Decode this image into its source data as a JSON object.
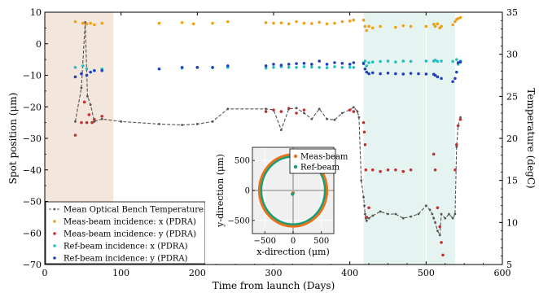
{
  "chart_data": {
    "type": "scatter",
    "xlabel": "Time from launch (Days)",
    "ylabel": "Spot position (μm)",
    "y2label": "Temperature (degC)",
    "xlim": [
      0,
      600
    ],
    "ylim": [
      -70,
      10
    ],
    "y2lim": [
      5,
      35
    ],
    "xticks": [
      "0",
      "100",
      "200",
      "300",
      "400",
      "500",
      "600"
    ],
    "yticks": [
      "10",
      "0",
      "−10",
      "−20",
      "−30",
      "−40",
      "−50",
      "−60",
      "−70"
    ],
    "y2ticks": [
      "35",
      "30",
      "25",
      "20",
      "15",
      "10",
      "5"
    ],
    "shaded_regions": [
      {
        "x": [
          0,
          90
        ],
        "color": "#f3e6dc"
      },
      {
        "x": [
          418,
          538
        ],
        "color": "#e6f4f1"
      }
    ],
    "grid_lines_x": [
      100,
      400,
      500
    ],
    "colors": {
      "temperature": "#555555",
      "meas_x": "#f0a010",
      "meas_y": "#c03030",
      "ref_x": "#20c0c0",
      "ref_y": "#2040c0",
      "inset_meas": "#e8731a",
      "inset_ref": "#1a9e77"
    },
    "legend": {
      "position": "lower-left",
      "entries": [
        {
          "label": "Mean Optical Bench Temperature",
          "color": "#555555",
          "marker": "line"
        },
        {
          "label": "Meas-beam incidence: x (PDRA)",
          "color": "#f0a010",
          "marker": "dot"
        },
        {
          "label": "Meas-beam incidence: y (PDRA)",
          "color": "#c03030",
          "marker": "dot"
        },
        {
          "label": "Ref-beam incidence: x (PDRA)",
          "color": "#20c0c0",
          "marker": "dot"
        },
        {
          "label": "Ref-beam incidence: y (PDRA)",
          "color": "#2040c0",
          "marker": "dot"
        }
      ]
    },
    "series": [
      {
        "name": "Mean Optical Bench Temperature",
        "axis": "right",
        "style": "line",
        "x": [
          40,
          48,
          53,
          56,
          60,
          65,
          75,
          100,
          150,
          180,
          200,
          220,
          240,
          290,
          300,
          310,
          320,
          330,
          340,
          350,
          360,
          370,
          380,
          390,
          400,
          405,
          410,
          412,
          415,
          418,
          419,
          420,
          421,
          422,
          425,
          430,
          440,
          450,
          460,
          470,
          480,
          490,
          500,
          505,
          508,
          510,
          512,
          515,
          518,
          520,
          525,
          530,
          535,
          538,
          540,
          542,
          545
        ],
        "y": [
          22,
          26,
          33.8,
          25,
          24,
          22,
          22.3,
          22,
          21.7,
          21.6,
          21.7,
          22,
          23.5,
          23.5,
          23.4,
          21,
          23.5,
          23.6,
          23,
          22.3,
          23.5,
          22.3,
          22.2,
          23,
          23.4,
          23.7,
          23.2,
          22.5,
          15,
          13,
          12,
          11,
          10.5,
          10.2,
          10.5,
          10.8,
          11.3,
          11,
          11,
          10.5,
          10.7,
          11,
          12,
          11.5,
          11,
          10.5,
          10,
          9,
          8.5,
          11,
          10.5,
          11,
          10.5,
          11,
          19,
          21.5,
          22.5
        ]
      },
      {
        "name": "Meas-beam incidence: x (PDRA)",
        "axis": "left",
        "style": "dots",
        "x": [
          40,
          50,
          55,
          60,
          65,
          75,
          150,
          180,
          195,
          220,
          240,
          290,
          300,
          310,
          320,
          330,
          340,
          350,
          360,
          370,
          380,
          390,
          400,
          405,
          418,
          420,
          422,
          425,
          430,
          440,
          460,
          470,
          480,
          500,
          510,
          512,
          515,
          518,
          520,
          535,
          538,
          540,
          542,
          545
        ],
        "y": [
          7,
          6.5,
          6.3,
          6.5,
          6,
          6.5,
          6.5,
          6.7,
          6.3,
          6.5,
          7,
          6.7,
          6.5,
          6.6,
          6.3,
          7,
          6.5,
          6.4,
          6.8,
          6.3,
          6.5,
          7,
          7.2,
          7.5,
          7.5,
          5.5,
          4.2,
          5.5,
          5,
          5.5,
          5.2,
          5.7,
          5.5,
          5.5,
          6.2,
          5.5,
          6.3,
          5,
          5.5,
          6,
          7,
          7.7,
          8,
          8.3
        ]
      },
      {
        "name": "Meas-beam incidence: y (PDRA)",
        "axis": "left",
        "style": "dots",
        "x": [
          40,
          48,
          52,
          55,
          58,
          62,
          65,
          75,
          290,
          300,
          310,
          320,
          330,
          340,
          400,
          405,
          418,
          419,
          420,
          421,
          422,
          425,
          430,
          440,
          450,
          460,
          470,
          480,
          510,
          512,
          515,
          518,
          520,
          522,
          538,
          540,
          542,
          545
        ],
        "y": [
          -29,
          -25,
          -18.5,
          -25,
          -22.5,
          -25,
          -24,
          -23,
          -21.5,
          -21,
          -21.5,
          -20.5,
          -22,
          -21,
          -21,
          -21.5,
          -25,
          -28,
          -32,
          -40,
          -55,
          -52,
          -40,
          -40.5,
          -40,
          -40,
          -40.5,
          -40,
          -35,
          -40,
          -52,
          -58,
          -63,
          -67,
          -40,
          -32,
          -26,
          -24
        ]
      },
      {
        "name": "Ref-beam incidence: x (PDRA)",
        "axis": "left",
        "style": "dots",
        "x": [
          40,
          50,
          55,
          65,
          75,
          150,
          180,
          200,
          220,
          240,
          290,
          300,
          310,
          320,
          330,
          340,
          350,
          360,
          370,
          380,
          390,
          400,
          405,
          418,
          420,
          422,
          425,
          430,
          440,
          450,
          460,
          470,
          480,
          500,
          510,
          512,
          515,
          520,
          535,
          540,
          542,
          545
        ],
        "y": [
          -7.5,
          -7,
          -8,
          -8.5,
          -8,
          -8,
          -7.7,
          -7.5,
          -7.6,
          -7.5,
          -7.7,
          -7.5,
          -7.3,
          -7.5,
          -7.5,
          -7.3,
          -7.4,
          -7.5,
          -7.6,
          -7.3,
          -7.5,
          -7.5,
          -7.5,
          -6,
          -5.5,
          -7,
          -6,
          -5.8,
          -5.6,
          -5.5,
          -5.8,
          -5.5,
          -5.6,
          -5.5,
          -5.5,
          -5.2,
          -5.6,
          -5.5,
          -5.6,
          -5,
          -6.5,
          -5.5
        ]
      },
      {
        "name": "Ref-beam incidence: y (PDRA)",
        "axis": "left",
        "style": "dots",
        "x": [
          40,
          48,
          55,
          60,
          65,
          75,
          150,
          180,
          200,
          220,
          240,
          290,
          300,
          310,
          320,
          330,
          340,
          350,
          360,
          370,
          380,
          390,
          400,
          405,
          418,
          420,
          422,
          425,
          430,
          440,
          450,
          460,
          470,
          480,
          490,
          500,
          510,
          512,
          515,
          520,
          535,
          538,
          540,
          542,
          545
        ],
        "y": [
          -10.5,
          -9.5,
          -10,
          -9,
          -8.5,
          -8.5,
          -8,
          -7.5,
          -7.5,
          -7.5,
          -7,
          -7,
          -6.5,
          -6.8,
          -6.5,
          -6.3,
          -6.2,
          -6.5,
          -5.5,
          -6.5,
          -6,
          -6.2,
          -6.5,
          -6,
          -6.3,
          -8,
          -9,
          -9.5,
          -9.2,
          -9.5,
          -9.3,
          -9.5,
          -9.6,
          -9.4,
          -9.5,
          -9.6,
          -9.7,
          -10,
          -10.5,
          -11,
          -12,
          -11,
          -9,
          -6,
          -5.8
        ]
      }
    ],
    "inset": {
      "xlabel": "x-direction (μm)",
      "ylabel": "y-direction (μm)",
      "xlim": [
        -720,
        720
      ],
      "ylim": [
        -720,
        720
      ],
      "xticks": [
        "−500",
        "0",
        "500"
      ],
      "yticks": [
        "500",
        "0",
        "−500"
      ],
      "legend": [
        {
          "label": "Meas-beam",
          "color": "#e8731a"
        },
        {
          "label": "Ref-beam",
          "color": "#1a9e77"
        }
      ],
      "circle_radius": 600,
      "center_points": [
        [
          0,
          -40
        ],
        [
          -10,
          -60
        ]
      ]
    }
  }
}
